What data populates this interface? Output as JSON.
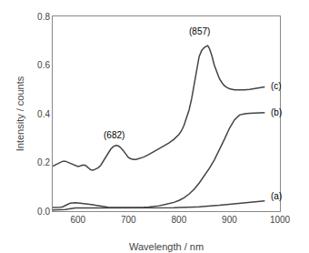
{
  "chart_data": {
    "type": "line",
    "xlabel": "Wavelength / nm",
    "ylabel": "Intensity / counts",
    "xlim": [
      550,
      1000
    ],
    "ylim": [
      0,
      0.8
    ],
    "xticks": [
      600,
      700,
      800,
      900,
      1000
    ],
    "yticks": [
      {
        "value": 0,
        "label": "0.0"
      },
      0.2,
      0.4,
      0.6,
      0.8
    ],
    "grid": false,
    "series": [
      {
        "color": "#444444",
        "x": [
          550,
          555,
          560,
          565,
          570,
          575,
          580,
          585,
          590,
          595,
          600,
          605,
          610,
          615,
          620,
          625,
          630,
          635,
          640,
          645,
          650,
          655,
          660,
          665,
          670,
          675,
          680,
          685,
          690,
          695,
          700,
          705,
          710,
          715,
          720,
          730,
          740,
          750,
          760,
          770,
          780,
          790,
          800,
          805,
          810,
          815,
          820,
          825,
          830,
          835,
          840,
          845,
          850,
          855,
          857,
          860,
          865,
          870,
          875,
          880,
          885,
          890,
          895,
          900,
          910,
          920,
          930,
          940,
          950,
          960,
          970
        ],
        "values": [
          0.185,
          0.19,
          0.195,
          0.2,
          0.205,
          0.205,
          0.2,
          0.195,
          0.19,
          0.185,
          0.183,
          0.186,
          0.19,
          0.188,
          0.178,
          0.17,
          0.168,
          0.172,
          0.178,
          0.188,
          0.205,
          0.22,
          0.24,
          0.255,
          0.265,
          0.27,
          0.268,
          0.26,
          0.248,
          0.234,
          0.22,
          0.215,
          0.212,
          0.212,
          0.215,
          0.222,
          0.232,
          0.243,
          0.255,
          0.268,
          0.28,
          0.295,
          0.315,
          0.33,
          0.352,
          0.38,
          0.415,
          0.46,
          0.52,
          0.585,
          0.635,
          0.66,
          0.672,
          0.678,
          0.68,
          0.67,
          0.64,
          0.6,
          0.568,
          0.545,
          0.528,
          0.515,
          0.508,
          0.503,
          0.498,
          0.497,
          0.498,
          0.5,
          0.503,
          0.506,
          0.51
        ]
      },
      {
        "color": "#444444",
        "x": [
          550,
          555,
          560,
          565,
          570,
          575,
          580,
          585,
          590,
          595,
          600,
          605,
          610,
          615,
          620,
          625,
          630,
          635,
          640,
          645,
          650,
          660,
          670,
          680,
          690,
          700,
          710,
          720,
          730,
          740,
          750,
          760,
          770,
          780,
          790,
          800,
          810,
          820,
          830,
          840,
          850,
          860,
          870,
          880,
          890,
          900,
          910,
          920,
          930,
          940,
          950,
          960,
          970
        ],
        "values": [
          0.015,
          0.015,
          0.015,
          0.016,
          0.018,
          0.022,
          0.028,
          0.033,
          0.035,
          0.035,
          0.034,
          0.033,
          0.032,
          0.031,
          0.03,
          0.028,
          0.026,
          0.024,
          0.022,
          0.02,
          0.018,
          0.016,
          0.015,
          0.015,
          0.014,
          0.014,
          0.014,
          0.015,
          0.016,
          0.017,
          0.019,
          0.022,
          0.026,
          0.031,
          0.036,
          0.044,
          0.055,
          0.07,
          0.09,
          0.115,
          0.145,
          0.175,
          0.21,
          0.25,
          0.295,
          0.34,
          0.375,
          0.395,
          0.4,
          0.402,
          0.403,
          0.404,
          0.405
        ]
      },
      {
        "color": "#444444",
        "x": [
          550,
          555,
          560,
          565,
          570,
          575,
          580,
          585,
          590,
          595,
          600,
          605,
          610,
          615,
          620,
          625,
          630,
          635,
          640,
          645,
          650,
          660,
          670,
          680,
          690,
          700,
          710,
          720,
          730,
          740,
          750,
          760,
          770,
          780,
          790,
          800,
          810,
          820,
          830,
          840,
          850,
          860,
          870,
          880,
          890,
          900,
          910,
          920,
          930,
          940,
          950,
          960,
          970
        ],
        "values": [
          0.005,
          0.005,
          0.005,
          0.005,
          0.006,
          0.007,
          0.008,
          0.01,
          0.012,
          0.013,
          0.013,
          0.013,
          0.012,
          0.012,
          0.012,
          0.012,
          0.012,
          0.012,
          0.012,
          0.012,
          0.012,
          0.012,
          0.012,
          0.012,
          0.012,
          0.012,
          0.012,
          0.012,
          0.012,
          0.012,
          0.012,
          0.012,
          0.013,
          0.013,
          0.014,
          0.015,
          0.015,
          0.016,
          0.017,
          0.018,
          0.019,
          0.02,
          0.022,
          0.024,
          0.026,
          0.028,
          0.03,
          0.032,
          0.034,
          0.036,
          0.038,
          0.04,
          0.042
        ]
      }
    ],
    "annotations": [
      {
        "text": "(857)",
        "x": 840,
        "y": 0.71
      },
      {
        "text": "(682)",
        "x": 648,
        "y": 0.285
      },
      {
        "text": "(a)",
        "x": 978,
        "y": 0.06
      },
      {
        "text": "(b)",
        "x": 978,
        "y": 0.405
      },
      {
        "text": "(c)",
        "x": 978,
        "y": 0.515
      }
    ]
  }
}
